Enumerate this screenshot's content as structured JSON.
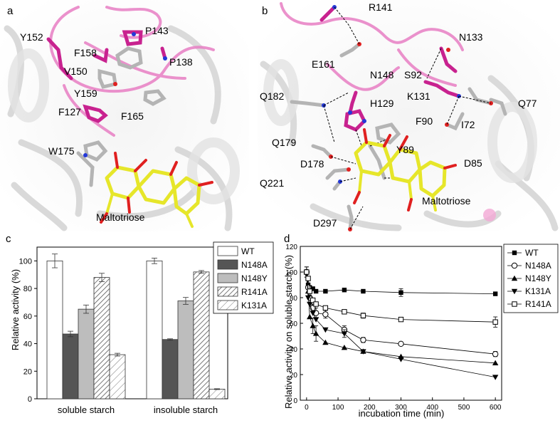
{
  "panel_letters": [
    "a",
    "b",
    "c",
    "d"
  ],
  "structure_a": {
    "residues": [
      {
        "label": "Y152"
      },
      {
        "label": "F158"
      },
      {
        "label": "P143"
      },
      {
        "label": "V150"
      },
      {
        "label": "P138"
      },
      {
        "label": "Y159"
      },
      {
        "label": "F127"
      },
      {
        "label": "F165"
      },
      {
        "label": "W175"
      }
    ],
    "ligand": "Maltotriose"
  },
  "structure_b": {
    "residues": [
      {
        "label": "R141"
      },
      {
        "label": "N133"
      },
      {
        "label": "E161"
      },
      {
        "label": "N148"
      },
      {
        "label": "S92"
      },
      {
        "label": "Q182"
      },
      {
        "label": "K131"
      },
      {
        "label": "H129"
      },
      {
        "label": "F90"
      },
      {
        "label": "I72"
      },
      {
        "label": "Q77"
      },
      {
        "label": "Q179"
      },
      {
        "label": "Y89"
      },
      {
        "label": "D178"
      },
      {
        "label": "D85"
      },
      {
        "label": "Q221"
      },
      {
        "label": "D297"
      }
    ],
    "ligand": "Maltotriose"
  },
  "colors": {
    "ribbon_pink": "#e87fc4",
    "residue_magenta": "#c8228f",
    "residue_gray": "#b4b4b4",
    "ligand_yellow": "#e6e62a",
    "oxygen_red": "#e02020",
    "nitrogen_blue": "#2438d8",
    "cartoon_gray": "#d4d4d4"
  },
  "chart_data": [
    {
      "type": "bar",
      "panel": "c",
      "categories": [
        "soluble starch",
        "insoluble starch"
      ],
      "series": [
        {
          "name": "WT",
          "values": [
            100,
            100
          ],
          "errors": [
            5,
            2
          ]
        },
        {
          "name": "N148A",
          "values": [
            47,
            43
          ],
          "errors": [
            2,
            0.5
          ]
        },
        {
          "name": "N148Y",
          "values": [
            65,
            71
          ],
          "errors": [
            3,
            2.5
          ]
        },
        {
          "name": "R141A",
          "values": [
            88,
            92
          ],
          "errors": [
            3,
            1
          ]
        },
        {
          "name": "K131A",
          "values": [
            32,
            7
          ],
          "errors": [
            1,
            0.3
          ]
        }
      ],
      "ylabel": "Relative activity (%)",
      "xlabel": "",
      "ylim": [
        0,
        110
      ],
      "yticks": [
        0,
        20,
        40,
        60,
        80,
        100
      ],
      "legend": "top-right"
    },
    {
      "type": "line",
      "panel": "d",
      "xlabel": "incubation time (min)",
      "ylabel": "Relative activity on soluble starch (%)",
      "xlim": [
        -20,
        620
      ],
      "ylim": [
        0,
        120
      ],
      "xticks": [
        0,
        100,
        200,
        300,
        400,
        500,
        600
      ],
      "yticks": [
        0,
        20,
        40,
        60,
        80,
        100,
        120
      ],
      "legend": "right-outside",
      "series": [
        {
          "name": "WT",
          "marker": "filled-square",
          "x": [
            0,
            5,
            10,
            20,
            30,
            60,
            120,
            180,
            300,
            600
          ],
          "y": [
            100,
            90,
            88,
            87,
            85,
            85,
            86,
            85,
            84,
            83
          ],
          "err": [
            4,
            0,
            0,
            0,
            0,
            0,
            0,
            0,
            3,
            0
          ]
        },
        {
          "name": "N148A",
          "marker": "open-circle",
          "x": [
            0,
            5,
            10,
            20,
            30,
            60,
            120,
            180,
            300,
            600
          ],
          "y": [
            100,
            88,
            80,
            72,
            68,
            67,
            55,
            47,
            44,
            36
          ],
          "err": [
            0,
            0,
            0,
            3,
            4,
            3,
            3,
            2,
            0,
            2
          ]
        },
        {
          "name": "N148Y",
          "marker": "filled-triangle-up",
          "x": [
            0,
            5,
            10,
            20,
            30,
            60,
            120,
            180,
            300,
            600
          ],
          "y": [
            100,
            85,
            65,
            58,
            52,
            45,
            41,
            38,
            34,
            29
          ],
          "err": [
            0,
            0,
            0,
            6,
            6,
            0,
            0,
            0,
            0,
            0
          ]
        },
        {
          "name": "K131A",
          "marker": "filled-triangle-down",
          "x": [
            0,
            5,
            10,
            20,
            30,
            60,
            120,
            180,
            300,
            600
          ],
          "y": [
            98,
            80,
            75,
            68,
            63,
            55,
            52,
            38,
            32,
            18
          ],
          "err": [
            0,
            0,
            0,
            0,
            0,
            0,
            3,
            0,
            0,
            0
          ]
        },
        {
          "name": "R141A",
          "marker": "open-square",
          "x": [
            0,
            5,
            10,
            20,
            30,
            60,
            120,
            180,
            300,
            600
          ],
          "y": [
            100,
            95,
            85,
            78,
            75,
            72,
            69,
            66,
            63,
            61
          ],
          "err": [
            4,
            0,
            0,
            0,
            0,
            0,
            0,
            2,
            0,
            4
          ]
        }
      ]
    }
  ]
}
